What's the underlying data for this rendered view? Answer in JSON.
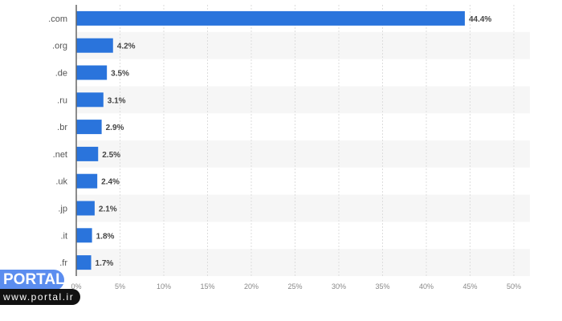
{
  "chart_data": {
    "type": "bar",
    "orientation": "horizontal",
    "categories": [
      ".com",
      ".org",
      ".de",
      ".ru",
      ".br",
      ".net",
      ".uk",
      ".jp",
      ".it",
      ".fr"
    ],
    "values": [
      44.4,
      4.2,
      3.5,
      3.1,
      2.9,
      2.5,
      2.4,
      2.1,
      1.8,
      1.7
    ],
    "data_labels": [
      "44.4%",
      "4.2%",
      "3.5%",
      "3.1%",
      "2.9%",
      "2.5%",
      "2.4%",
      "2.1%",
      "1.8%",
      "1.7%"
    ],
    "x_ticks": [
      "0%",
      "5%",
      "10%",
      "15%",
      "20%",
      "25%",
      "30%",
      "35%",
      "40%",
      "45%",
      "50%"
    ],
    "xlim": [
      0,
      50
    ],
    "grid": true,
    "bar_color": "#2a74dc"
  },
  "watermark": {
    "brand": "PORTAL",
    "url": "www.portal.ir"
  }
}
